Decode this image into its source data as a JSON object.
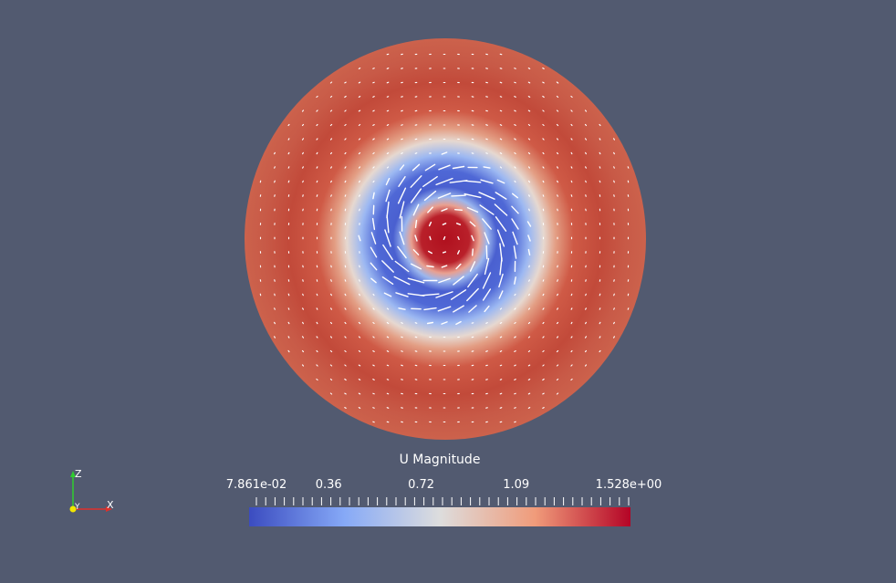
{
  "colorbar": {
    "title": "U Magnitude",
    "ticks": [
      {
        "label": "7.861e-02",
        "value": 0.07861
      },
      {
        "label": "0.36",
        "value": 0.36
      },
      {
        "label": "0.72",
        "value": 0.72
      },
      {
        "label": "1.09",
        "value": 1.09
      },
      {
        "label": "1.528e+00",
        "value": 1.528
      }
    ],
    "range": [
      0.07861,
      1.528
    ],
    "colors": {
      "low": "#3b4cc0",
      "mid": "#dddddd",
      "high": "#b40426"
    }
  },
  "axes": {
    "z": "Z",
    "y": "Y",
    "x": "X",
    "colors": {
      "x": "#e0302a",
      "y": "#f2e600",
      "z": "#2fcc2f"
    }
  },
  "background": "#525a70"
}
